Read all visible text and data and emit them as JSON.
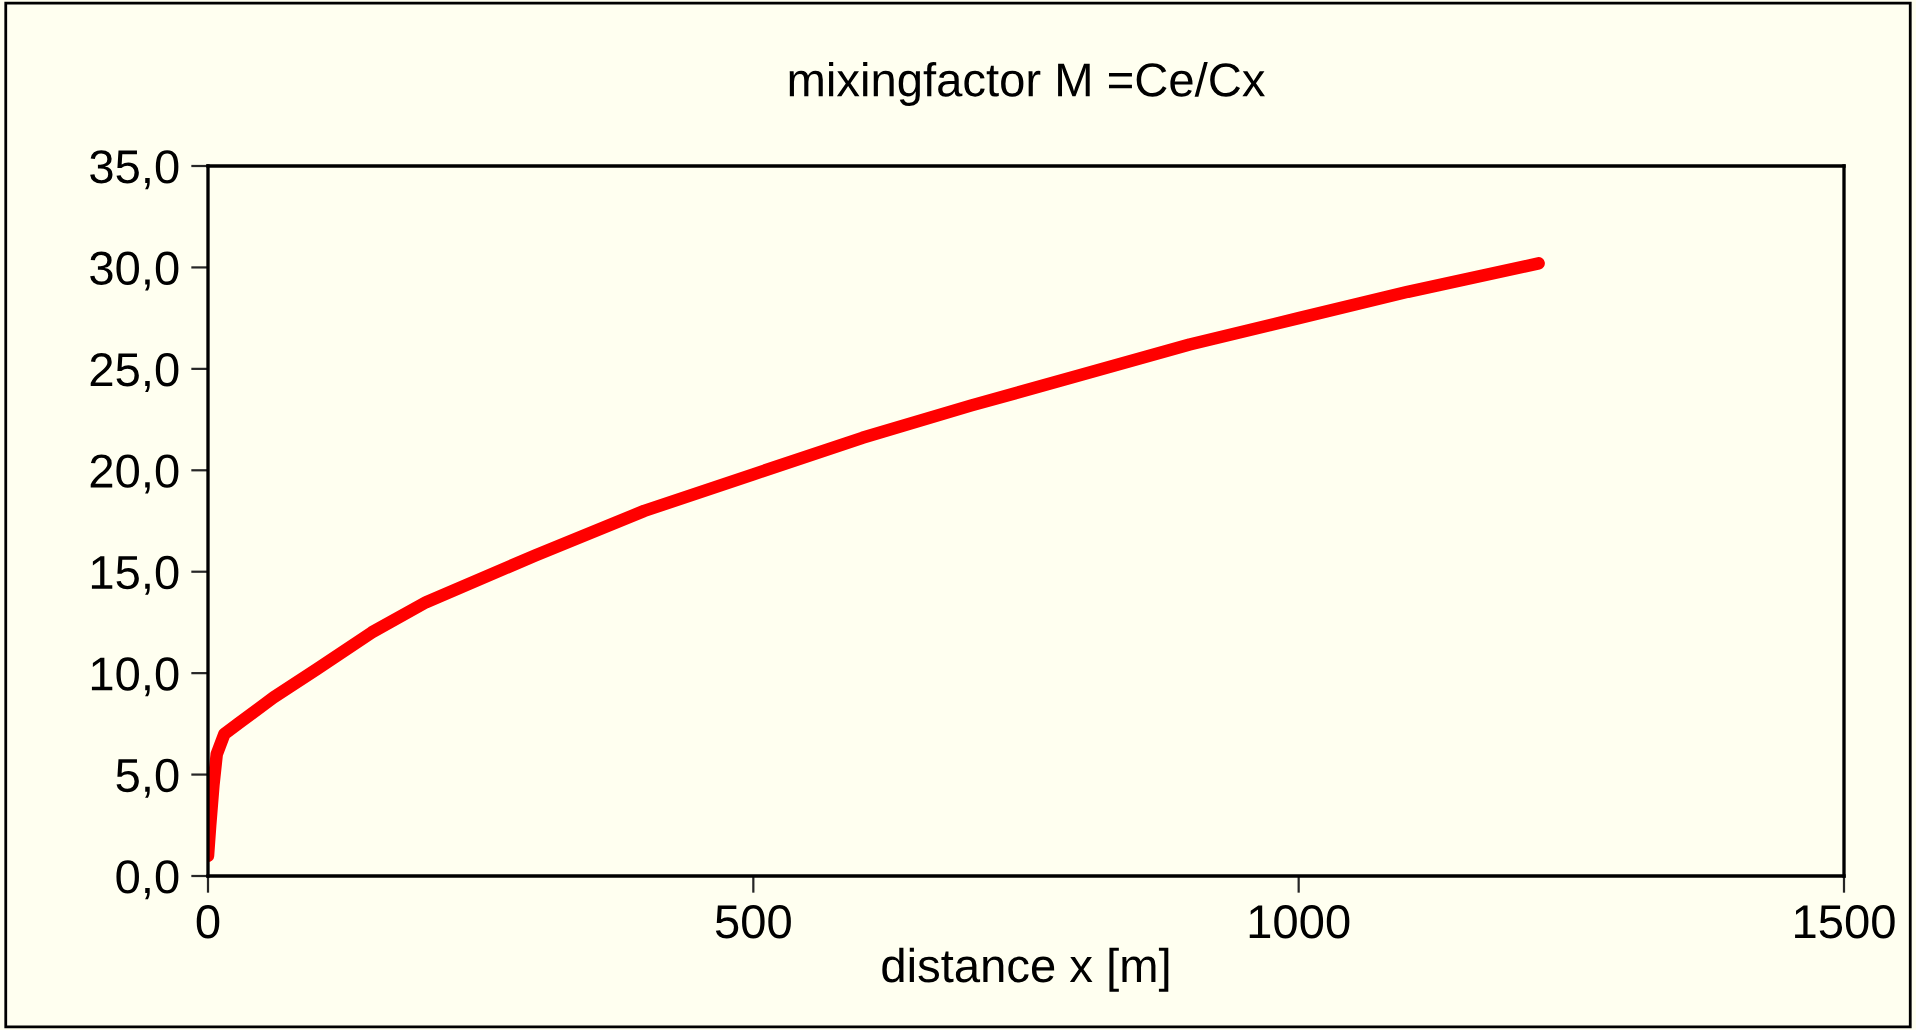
{
  "chart_data": {
    "type": "line",
    "title": "mixingfactor M =Ce/Cx",
    "xlabel": "distance x [m]",
    "x": [
      0,
      2,
      5,
      8,
      15,
      30,
      60,
      100,
      150,
      200,
      300,
      400,
      500,
      600,
      700,
      800,
      900,
      1000,
      1100,
      1220
    ],
    "series": [
      {
        "color": "#ff0000",
        "values": [
          1.0,
          2.5,
          4.5,
          6.0,
          7.0,
          7.6,
          8.8,
          10.2,
          12.0,
          13.5,
          15.8,
          18.0,
          19.8,
          21.6,
          23.2,
          24.7,
          26.2,
          27.5,
          28.8,
          30.2
        ]
      }
    ],
    "xlim": [
      0,
      1500
    ],
    "xticks": [
      0,
      500,
      1000,
      1500
    ],
    "ylim": [
      0,
      35
    ],
    "yticks": [
      {
        "value": 0,
        "label": "0,0"
      },
      {
        "value": 5,
        "label": "5,0"
      },
      {
        "value": 10,
        "label": "10,0"
      },
      {
        "value": 15,
        "label": "15,0"
      },
      {
        "value": 20,
        "label": "20,0"
      },
      {
        "value": 25,
        "label": "25,0"
      },
      {
        "value": 30,
        "label": "30,0"
      },
      {
        "value": 35,
        "label": "35,0"
      }
    ],
    "grid": false,
    "legend": false,
    "marker": "none",
    "line_style": "solid"
  }
}
